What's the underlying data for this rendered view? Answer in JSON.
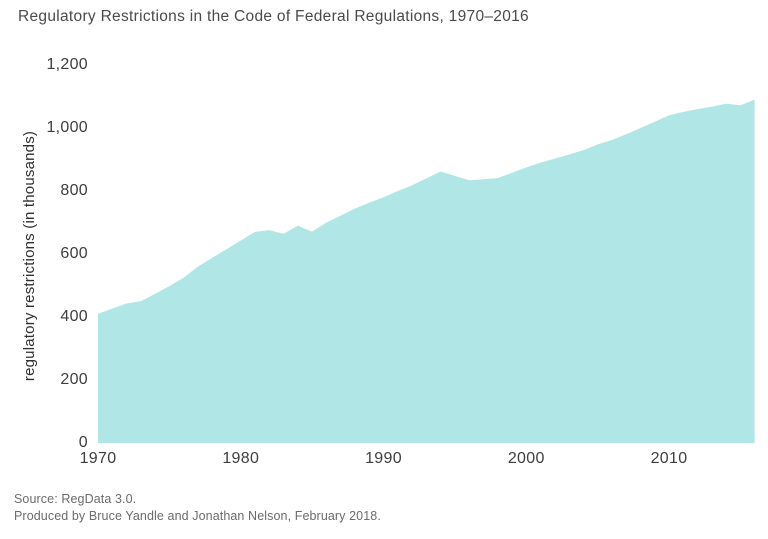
{
  "chart_data": {
    "type": "area",
    "title": "Regulatory Restrictions in the Code of Federal Regulations, 1970–2016",
    "ylabel": "regulatory restrictions (in thousands)",
    "xlabel": "",
    "series_name": "regulatory restrictions (in thousands)",
    "x": [
      1970,
      1971,
      1972,
      1973,
      1974,
      1975,
      1976,
      1977,
      1978,
      1979,
      1980,
      1981,
      1982,
      1983,
      1984,
      1985,
      1986,
      1987,
      1988,
      1989,
      1990,
      1991,
      1992,
      1993,
      1994,
      1995,
      1996,
      1997,
      1998,
      1999,
      2000,
      2001,
      2002,
      2003,
      2004,
      2005,
      2006,
      2007,
      2008,
      2009,
      2010,
      2011,
      2012,
      2013,
      2014,
      2015,
      2016
    ],
    "values": [
      410,
      427,
      443,
      450,
      474,
      498,
      525,
      560,
      588,
      615,
      643,
      670,
      676,
      664,
      690,
      671,
      700,
      722,
      744,
      763,
      780,
      800,
      818,
      840,
      862,
      848,
      834,
      837,
      841,
      858,
      875,
      890,
      903,
      916,
      930,
      948,
      962,
      980,
      1000,
      1020,
      1040,
      1051,
      1060,
      1068,
      1077,
      1072,
      1090
    ],
    "xlim": [
      1970,
      2016
    ],
    "ylim": [
      0,
      1200
    ],
    "x_ticks": [
      1970,
      1980,
      1990,
      2000,
      2010
    ],
    "x_tick_labels": [
      "1970",
      "1980",
      "1990",
      "2000",
      "2010"
    ],
    "y_ticks": [
      0,
      200,
      400,
      600,
      800,
      1000,
      1200
    ],
    "y_tick_labels": [
      "0",
      "200",
      "400",
      "600",
      "800",
      "1,000",
      "1,200"
    ],
    "fill_color": "#b0e7e6",
    "grid": false,
    "legend": false
  },
  "source": {
    "line1": "Source: RegData 3.0.",
    "line2": "Produced by Bruce Yandle and Jonathan Nelson, February 2018."
  }
}
